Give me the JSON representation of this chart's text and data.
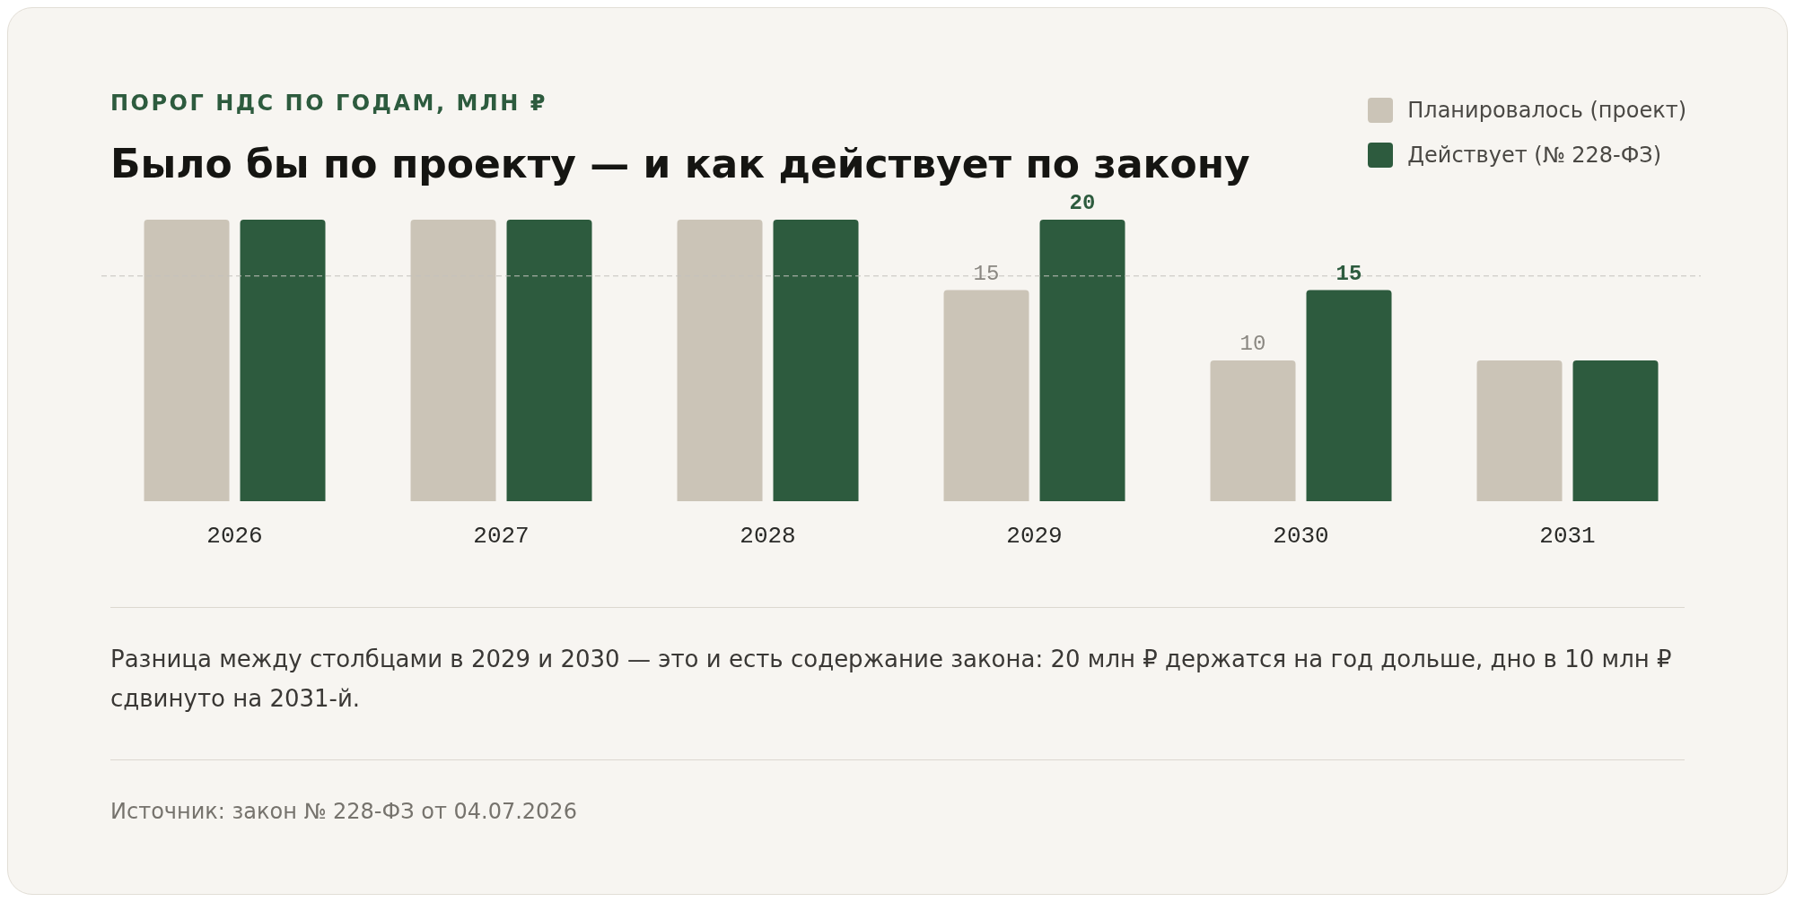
{
  "chart_data": {
    "type": "bar",
    "subtitle": "ПОРОГ НДС ПО ГОДАМ, МЛН ₽",
    "title": "Было бы по проекту — и как действует по закону",
    "categories": [
      "2026",
      "2027",
      "2028",
      "2029",
      "2030",
      "2031"
    ],
    "series": [
      {
        "name": "Планировалось (проект)",
        "color": "#cbc4b7",
        "values": [
          20,
          20,
          20,
          15,
          10,
          10
        ],
        "value_labels": [
          null,
          null,
          null,
          "15",
          "10",
          null
        ]
      },
      {
        "name": "Действует (№ 228-ФЗ)",
        "color": "#2d5b3e",
        "values": [
          20,
          20,
          20,
          20,
          15,
          10
        ],
        "value_labels": [
          null,
          null,
          null,
          "20",
          "15",
          null
        ]
      }
    ],
    "ylim": [
      0,
      20
    ],
    "grid": false,
    "legend": "top right",
    "ref_lines": [
      {
        "axis": "y",
        "value": 16,
        "label": null,
        "color": "#c4c2bc",
        "line_style": "dashed"
      }
    ],
    "annotations": [
      "Разница между столбцами в 2029 и 2030 — это и есть содержание закона: 20 млн ₽ держатся на год дольше, дно в 10 млн ₽ сдвинуто на 2031-й.",
      "Источник: закон № 228-ФЗ от 04.07.2026"
    ]
  }
}
